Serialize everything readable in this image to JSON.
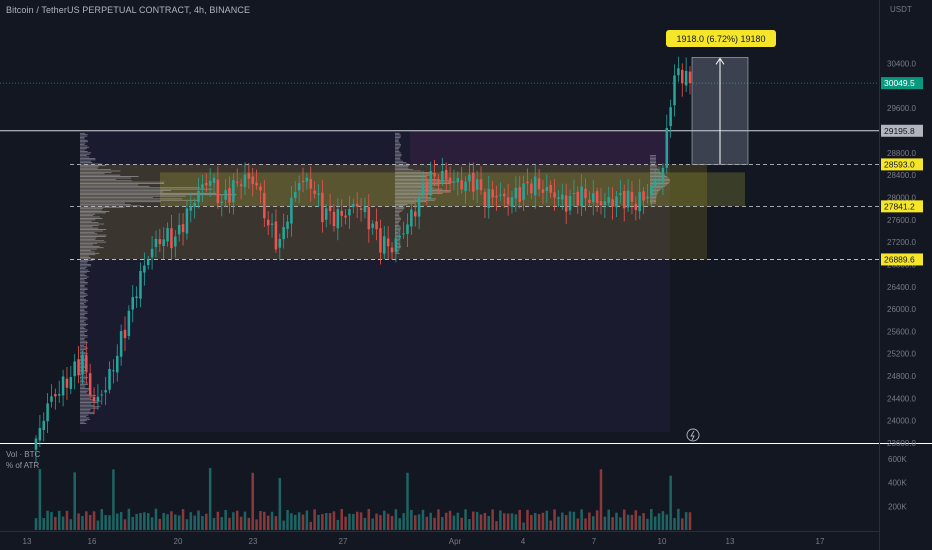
{
  "header": {
    "title": "Bitcoin / TetherUS PERPETUAL CONTRACT, 4h, BINANCE"
  },
  "price_axis": {
    "unit": "USDT",
    "ticks": [
      "30400.0",
      "30000.0",
      "29600.0",
      "29200.0",
      "28800.0",
      "28400.0",
      "28000.0",
      "27600.0",
      "27200.0",
      "26800.0",
      "26400.0",
      "26000.0",
      "25600.0",
      "25200.0",
      "24800.0",
      "24400.0",
      "24000.0",
      "23600.0"
    ]
  },
  "volume_pane": {
    "title": "Vol · BTC",
    "subtitle": "% of ATR",
    "axis_ticks": [
      "600K",
      "400K",
      "200K"
    ]
  },
  "time_axis": {
    "labels": [
      "13",
      "16",
      "20",
      "23",
      "27",
      "Apr",
      "4",
      "7",
      "10",
      "13",
      "17"
    ]
  },
  "price_labels": {
    "current": "30049.5",
    "level_1": "29195.8",
    "level_2": "28593.0",
    "level_3": "27841.2",
    "level_4": "26889.6"
  },
  "measurement": {
    "label": "1918.0 (6.72%) 19180"
  },
  "colors": {
    "background": "#131722",
    "up": "#26a69a",
    "down": "#ef5350",
    "current_price_badge": "#089981",
    "highlight_badge": "#f5e629",
    "level_badge_grey": "#b2b5be"
  },
  "chart_data": {
    "type": "candlestick",
    "price_range": [
      23550,
      30700
    ],
    "volume_range_K": [
      0,
      700
    ],
    "levels": [
      29195.8,
      28593.0,
      27841.2,
      26889.6
    ],
    "current_price": 30049.5,
    "measurement_range": [
      28593.0,
      30511.0
    ],
    "ohlc_anchor_closes": [
      [
        0,
        23600
      ],
      [
        3,
        24300
      ],
      [
        6,
        24550
      ],
      [
        9,
        24800
      ],
      [
        12,
        25100
      ],
      [
        15,
        24300
      ],
      [
        18,
        24600
      ],
      [
        21,
        25200
      ],
      [
        24,
        25900
      ],
      [
        27,
        26600
      ],
      [
        30,
        27100
      ],
      [
        33,
        27300
      ],
      [
        36,
        27250
      ],
      [
        39,
        27700
      ],
      [
        42,
        28100
      ],
      [
        45,
        28350
      ],
      [
        48,
        27900
      ],
      [
        51,
        28200
      ],
      [
        54,
        28350
      ],
      [
        57,
        28250
      ],
      [
        60,
        27500
      ],
      [
        63,
        27150
      ],
      [
        65,
        27700
      ],
      [
        68,
        28300
      ],
      [
        71,
        28250
      ],
      [
        74,
        27750
      ],
      [
        77,
        27650
      ],
      [
        80,
        27700
      ],
      [
        83,
        27900
      ],
      [
        86,
        27600
      ],
      [
        89,
        27200
      ],
      [
        92,
        27100
      ],
      [
        95,
        27400
      ],
      [
        98,
        27800
      ],
      [
        101,
        28300
      ],
      [
        104,
        28400
      ],
      [
        107,
        28300
      ],
      [
        110,
        28250
      ],
      [
        113,
        28300
      ],
      [
        116,
        28000
      ],
      [
        119,
        28050
      ],
      [
        122,
        27950
      ],
      [
        125,
        28100
      ],
      [
        128,
        28250
      ],
      [
        131,
        28150
      ],
      [
        134,
        28050
      ],
      [
        137,
        27900
      ],
      [
        140,
        28050
      ],
      [
        143,
        28000
      ],
      [
        146,
        27900
      ],
      [
        149,
        27950
      ],
      [
        152,
        28000
      ],
      [
        155,
        27900
      ],
      [
        158,
        28050
      ],
      [
        160,
        28300
      ],
      [
        162,
        28500
      ],
      [
        164,
        29800
      ],
      [
        166,
        30300
      ],
      [
        168,
        30100
      ],
      [
        169,
        30050
      ]
    ]
  }
}
